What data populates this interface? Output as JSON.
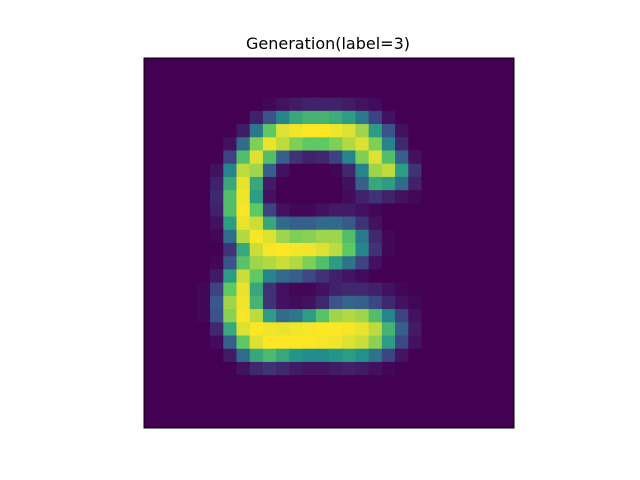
{
  "chart_data": {
    "type": "heatmap",
    "title": "Generation(label=3)",
    "xlabel": "",
    "ylabel": "",
    "rows": 28,
    "cols": 28,
    "axes_visible": false,
    "grid": false,
    "colormap": "viridis",
    "vmin": 0,
    "vmax": 1,
    "colormap_stops": [
      "#440154",
      "#3b528b",
      "#21918c",
      "#5ec962",
      "#fde725"
    ],
    "values": [
      [
        0,
        0,
        0,
        0,
        0,
        0,
        0,
        0,
        0,
        0,
        0,
        0,
        0,
        0,
        0,
        0,
        0,
        0,
        0,
        0,
        0,
        0,
        0,
        0,
        0,
        0,
        0,
        0
      ],
      [
        0,
        0,
        0,
        0,
        0,
        0,
        0,
        0,
        0,
        0,
        0,
        0,
        0,
        0,
        0,
        0,
        0,
        0,
        0,
        0,
        0,
        0,
        0,
        0,
        0,
        0,
        0,
        0
      ],
      [
        0,
        0,
        0,
        0,
        0,
        0,
        0,
        0,
        0,
        0,
        0,
        0,
        0,
        0,
        0,
        0,
        0,
        0,
        0,
        0,
        0,
        0,
        0,
        0,
        0,
        0,
        0,
        0
      ],
      [
        0,
        0,
        0,
        0,
        0,
        0,
        0,
        0,
        0,
        0.02,
        0.05,
        0.08,
        0.1,
        0.1,
        0.1,
        0.08,
        0.05,
        0.03,
        0,
        0,
        0,
        0,
        0,
        0,
        0,
        0,
        0,
        0
      ],
      [
        0,
        0,
        0,
        0,
        0,
        0,
        0,
        0,
        0.1,
        0.25,
        0.45,
        0.6,
        0.65,
        0.65,
        0.62,
        0.55,
        0.4,
        0.2,
        0.05,
        0,
        0,
        0,
        0,
        0,
        0,
        0,
        0,
        0
      ],
      [
        0,
        0,
        0,
        0,
        0,
        0,
        0,
        0.08,
        0.4,
        0.75,
        0.95,
        0.98,
        1,
        1,
        0.98,
        0.95,
        0.85,
        0.55,
        0.25,
        0.05,
        0,
        0,
        0,
        0,
        0,
        0,
        0,
        0
      ],
      [
        0,
        0,
        0,
        0,
        0,
        0,
        0.05,
        0.35,
        0.8,
        0.97,
        0.9,
        0.8,
        0.75,
        0.75,
        0.8,
        0.88,
        0.95,
        0.8,
        0.45,
        0.12,
        0,
        0,
        0,
        0,
        0,
        0,
        0,
        0
      ],
      [
        0,
        0,
        0,
        0,
        0,
        0,
        0.2,
        0.7,
        0.95,
        0.7,
        0.3,
        0.15,
        0.1,
        0.12,
        0.2,
        0.45,
        0.8,
        0.95,
        0.7,
        0.3,
        0.05,
        0,
        0,
        0,
        0,
        0,
        0,
        0
      ],
      [
        0,
        0,
        0,
        0,
        0,
        0.05,
        0.45,
        0.9,
        0.85,
        0.3,
        0.05,
        0,
        0,
        0,
        0.02,
        0.12,
        0.45,
        0.85,
        0.9,
        0.55,
        0.15,
        0,
        0,
        0,
        0,
        0,
        0,
        0
      ],
      [
        0,
        0,
        0,
        0,
        0,
        0.1,
        0.6,
        0.97,
        0.6,
        0.08,
        0,
        0,
        0,
        0,
        0,
        0.05,
        0.3,
        0.6,
        0.55,
        0.35,
        0.1,
        0,
        0,
        0,
        0,
        0,
        0,
        0
      ],
      [
        0,
        0,
        0,
        0,
        0,
        0.12,
        0.7,
        0.98,
        0.55,
        0.05,
        0,
        0,
        0,
        0,
        0,
        0.03,
        0.1,
        0.15,
        0.1,
        0.05,
        0.02,
        0,
        0,
        0,
        0,
        0,
        0,
        0
      ],
      [
        0,
        0,
        0,
        0,
        0,
        0.1,
        0.7,
        0.99,
        0.75,
        0.2,
        0.05,
        0.02,
        0.02,
        0.05,
        0.08,
        0.08,
        0.05,
        0.02,
        0,
        0,
        0,
        0,
        0,
        0,
        0,
        0,
        0,
        0
      ],
      [
        0,
        0,
        0,
        0,
        0,
        0.05,
        0.55,
        0.97,
        0.92,
        0.6,
        0.35,
        0.3,
        0.3,
        0.35,
        0.35,
        0.28,
        0.15,
        0.05,
        0,
        0,
        0,
        0,
        0,
        0,
        0,
        0,
        0,
        0
      ],
      [
        0,
        0,
        0,
        0,
        0,
        0.02,
        0.35,
        0.88,
        0.99,
        0.95,
        0.85,
        0.8,
        0.82,
        0.85,
        0.85,
        0.7,
        0.4,
        0.12,
        0.02,
        0,
        0,
        0,
        0,
        0,
        0,
        0,
        0,
        0
      ],
      [
        0,
        0,
        0,
        0,
        0,
        0,
        0.15,
        0.6,
        0.92,
        0.99,
        1,
        0.99,
        0.98,
        0.95,
        0.9,
        0.75,
        0.45,
        0.15,
        0.02,
        0,
        0,
        0,
        0,
        0,
        0,
        0,
        0,
        0
      ],
      [
        0,
        0,
        0,
        0,
        0,
        0.02,
        0.25,
        0.72,
        0.85,
        0.88,
        0.92,
        0.88,
        0.8,
        0.7,
        0.55,
        0.38,
        0.2,
        0.05,
        0,
        0,
        0,
        0,
        0,
        0,
        0,
        0,
        0,
        0
      ],
      [
        0,
        0,
        0,
        0,
        0,
        0.08,
        0.55,
        0.92,
        0.75,
        0.45,
        0.35,
        0.3,
        0.22,
        0.15,
        0.1,
        0.06,
        0.03,
        0,
        0,
        0,
        0,
        0,
        0,
        0,
        0,
        0,
        0,
        0
      ],
      [
        0,
        0,
        0,
        0,
        0.02,
        0.2,
        0.75,
        0.97,
        0.6,
        0.15,
        0.05,
        0.02,
        0.02,
        0.05,
        0.1,
        0.12,
        0.12,
        0.1,
        0.05,
        0.02,
        0,
        0,
        0,
        0,
        0,
        0,
        0,
        0
      ],
      [
        0,
        0,
        0,
        0,
        0.02,
        0.28,
        0.85,
        0.98,
        0.65,
        0.15,
        0.05,
        0.03,
        0.05,
        0.12,
        0.25,
        0.32,
        0.3,
        0.22,
        0.12,
        0.05,
        0.02,
        0,
        0,
        0,
        0,
        0,
        0,
        0
      ],
      [
        0,
        0,
        0,
        0,
        0.02,
        0.25,
        0.82,
        0.99,
        0.9,
        0.55,
        0.35,
        0.4,
        0.55,
        0.72,
        0.85,
        0.88,
        0.85,
        0.7,
        0.45,
        0.2,
        0.05,
        0,
        0,
        0,
        0,
        0,
        0,
        0
      ],
      [
        0,
        0,
        0,
        0,
        0,
        0.12,
        0.6,
        0.95,
        1,
        0.98,
        0.97,
        0.98,
        0.99,
        1,
        1,
        0.99,
        0.97,
        0.9,
        0.65,
        0.3,
        0.08,
        0,
        0,
        0,
        0,
        0,
        0,
        0
      ],
      [
        0,
        0,
        0,
        0,
        0,
        0.03,
        0.3,
        0.75,
        0.95,
        1,
        1,
        1,
        1,
        0.99,
        0.98,
        0.95,
        0.92,
        0.82,
        0.55,
        0.22,
        0.05,
        0,
        0,
        0,
        0,
        0,
        0,
        0
      ],
      [
        0,
        0,
        0,
        0,
        0,
        0,
        0.08,
        0.35,
        0.6,
        0.68,
        0.6,
        0.52,
        0.48,
        0.48,
        0.52,
        0.55,
        0.5,
        0.38,
        0.2,
        0.06,
        0,
        0,
        0,
        0,
        0,
        0,
        0,
        0
      ],
      [
        0,
        0,
        0,
        0,
        0,
        0,
        0,
        0.05,
        0.12,
        0.15,
        0.12,
        0.08,
        0.06,
        0.06,
        0.08,
        0.1,
        0.08,
        0.05,
        0.02,
        0,
        0,
        0,
        0,
        0,
        0,
        0,
        0,
        0
      ],
      [
        0,
        0,
        0,
        0,
        0,
        0,
        0,
        0,
        0,
        0,
        0,
        0,
        0,
        0,
        0,
        0,
        0,
        0,
        0,
        0,
        0,
        0,
        0,
        0,
        0,
        0,
        0,
        0
      ],
      [
        0,
        0,
        0,
        0,
        0,
        0,
        0,
        0,
        0,
        0,
        0,
        0,
        0,
        0,
        0,
        0,
        0,
        0,
        0,
        0,
        0,
        0,
        0,
        0,
        0,
        0,
        0,
        0
      ],
      [
        0,
        0,
        0,
        0,
        0,
        0,
        0,
        0,
        0,
        0,
        0,
        0,
        0,
        0,
        0,
        0,
        0,
        0,
        0,
        0,
        0,
        0,
        0,
        0,
        0,
        0,
        0,
        0
      ],
      [
        0,
        0,
        0,
        0,
        0,
        0,
        0,
        0,
        0,
        0,
        0,
        0,
        0,
        0,
        0,
        0,
        0,
        0,
        0,
        0,
        0,
        0,
        0,
        0,
        0,
        0,
        0,
        0
      ]
    ]
  }
}
